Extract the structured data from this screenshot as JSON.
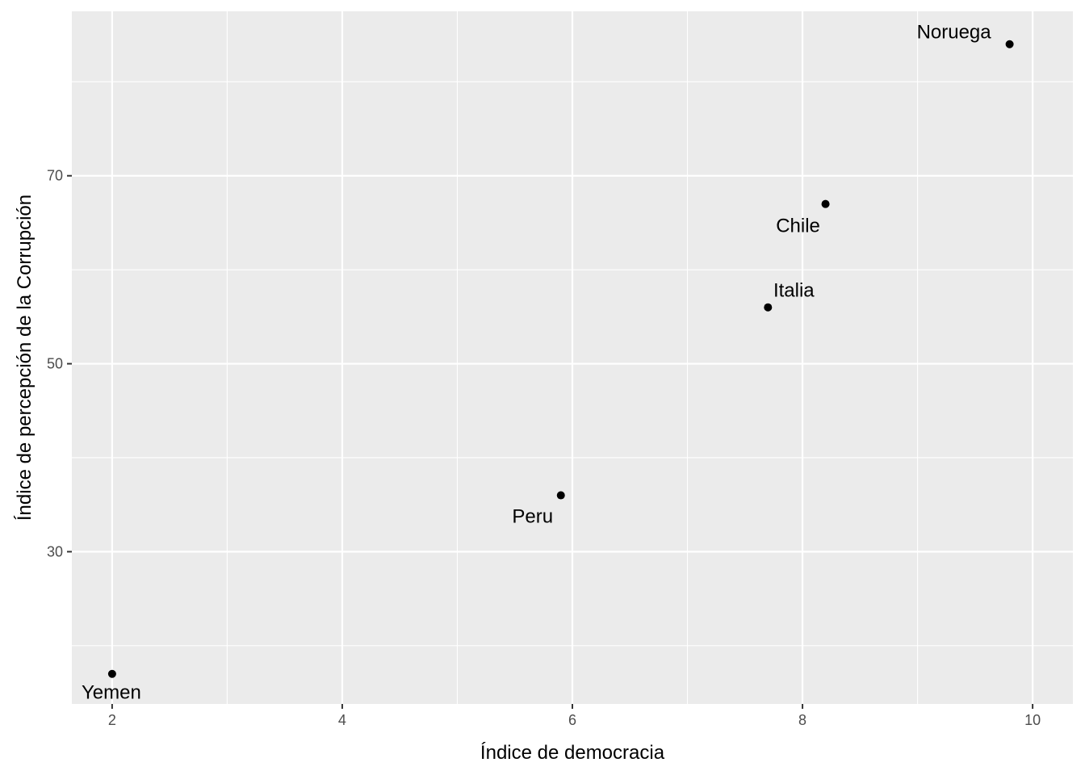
{
  "chart_data": {
    "type": "scatter",
    "title": "",
    "xlabel": "Índice de democracia",
    "ylabel": "Índice de percepción de la Corrupción",
    "xlim": [
      1.65,
      10.35
    ],
    "ylim": [
      13.8,
      87.5
    ],
    "x_ticks": [
      2,
      4,
      6,
      8,
      10
    ],
    "y_ticks": [
      30,
      50,
      70
    ],
    "x_minor": [
      3,
      5,
      7,
      9
    ],
    "y_minor": [
      20,
      40,
      60,
      80
    ],
    "grid": true,
    "legend": "none",
    "points": [
      {
        "label": "Yemen",
        "x": 2.0,
        "y": 17
      },
      {
        "label": "Peru",
        "x": 5.9,
        "y": 36
      },
      {
        "label": "Italia",
        "x": 7.7,
        "y": 56
      },
      {
        "label": "Chile",
        "x": 8.2,
        "y": 67
      },
      {
        "label": "Noruega",
        "x": 9.8,
        "y": 84
      }
    ]
  },
  "colors": {
    "panel": "#ebebeb",
    "grid": "#ffffff",
    "point": "#000000",
    "tick_text": "#4d4d4d",
    "axis_text": "#000000"
  }
}
